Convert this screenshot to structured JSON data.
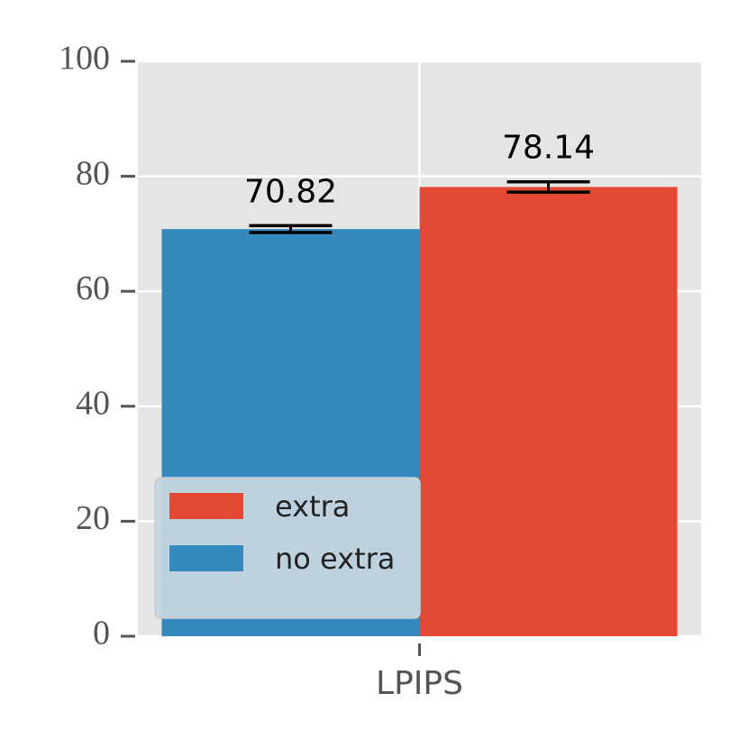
{
  "chart_data": {
    "type": "bar",
    "categories": [
      "LPIPS"
    ],
    "series": [
      {
        "name": "no extra",
        "color": "#348abd",
        "values": [
          70.82
        ],
        "errors": [
          0.6
        ]
      },
      {
        "name": "extra",
        "color": "#e24a33",
        "values": [
          78.14
        ],
        "errors": [
          0.9
        ]
      }
    ],
    "ylim": [
      0,
      100
    ],
    "yticks": [
      0,
      20,
      40,
      60,
      80,
      100
    ],
    "grid": true,
    "legend": "lower left"
  }
}
